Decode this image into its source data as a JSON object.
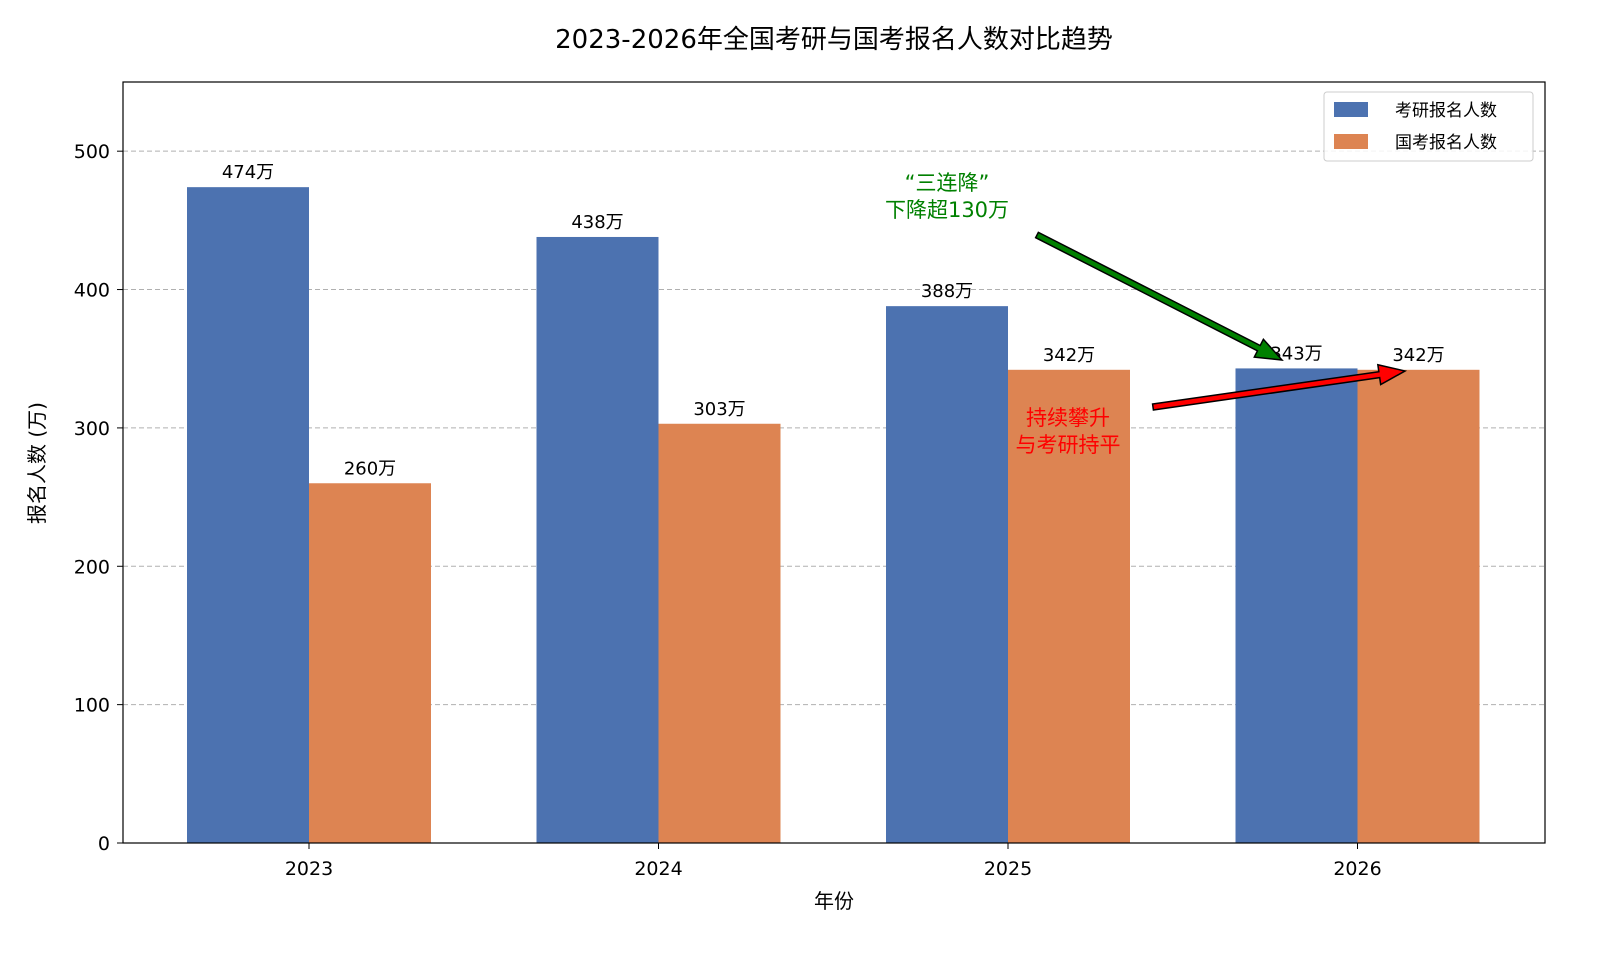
{
  "chart_data": {
    "type": "bar",
    "title": "2023-2026年全国考研与国考报名人数对比趋势",
    "xlabel": "年份",
    "ylabel": "报名人数 (万)",
    "categories": [
      "2023",
      "2024",
      "2025",
      "2026"
    ],
    "series": [
      {
        "name": "考研报名人数",
        "color": "#4c72b0",
        "values": [
          474,
          438,
          388,
          343
        ],
        "labels": [
          "474万",
          "438万",
          "388万",
          "343万"
        ]
      },
      {
        "name": "国考报名人数",
        "color": "#dd8452",
        "values": [
          260,
          303,
          342,
          342
        ],
        "labels": [
          "260万",
          "303万",
          "342万",
          "342万"
        ]
      }
    ],
    "ylim": [
      0,
      550
    ],
    "yticks": [
      "0",
      "100",
      "200",
      "300",
      "400",
      "500"
    ],
    "grid": "y-dashed",
    "legend_position": "top-right",
    "annotations": [
      {
        "lines": [
          "“三连降”",
          "下降超130万"
        ],
        "color": "#008000"
      },
      {
        "lines": [
          "持续攀升",
          "与考研持平"
        ],
        "color": "#ff0000"
      }
    ]
  }
}
